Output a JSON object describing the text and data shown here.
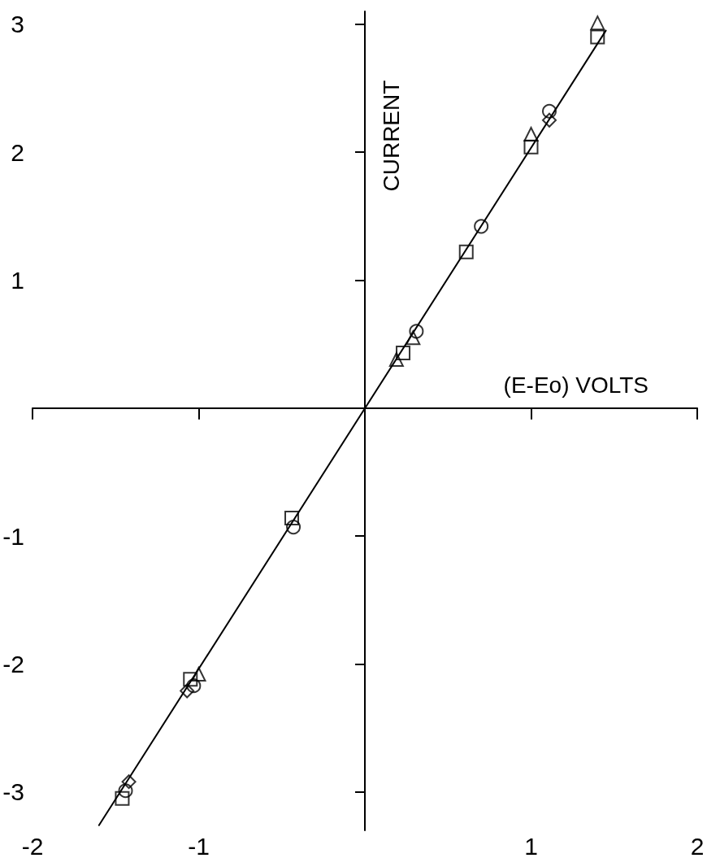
{
  "chart_data": {
    "type": "scatter",
    "xlabel": "(E-Eo) VOLTS",
    "ylabel": "CURRENT",
    "xlim": [
      -2,
      2
    ],
    "xticks": [
      -2,
      -1,
      1,
      2
    ],
    "ylim": [
      -3.3,
      3.1
    ],
    "yticks": [
      -3,
      -2,
      -1,
      1,
      2,
      3
    ],
    "grid": false,
    "series": [
      {
        "type": "line",
        "color": "#000000",
        "marker": "none",
        "line_style": "solid",
        "x": [
          -1.6,
          1.45
        ],
        "values": [
          -3.26,
          2.95
        ]
      },
      {
        "color": "#000000",
        "marker": "circle",
        "x": [
          0.31,
          1.11,
          0.7,
          -0.43,
          -1.03,
          -1.44
        ],
        "values": [
          0.6,
          2.32,
          1.42,
          -0.93,
          -2.17,
          -2.99
        ]
      },
      {
        "color": "#000000",
        "marker": "square",
        "x": [
          0.23,
          1.0,
          0.61,
          1.4,
          -0.44,
          -1.05,
          -1.46
        ],
        "values": [
          0.43,
          2.04,
          1.22,
          2.9,
          -0.86,
          -2.12,
          -3.05
        ]
      },
      {
        "color": "#000000",
        "marker": "triangle",
        "x": [
          0.29,
          0.19,
          1.0,
          1.4,
          -1.0
        ],
        "values": [
          0.55,
          0.38,
          2.14,
          3.01,
          -2.08
        ]
      },
      {
        "color": "#000000",
        "marker": "diamond",
        "x": [
          1.11,
          -1.07,
          -1.42
        ],
        "values": [
          2.25,
          -2.21,
          -2.92
        ]
      }
    ]
  }
}
